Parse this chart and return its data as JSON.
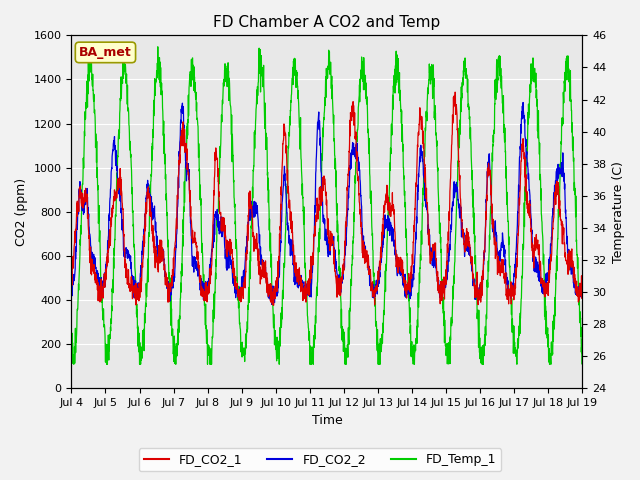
{
  "title": "FD Chamber A CO2 and Temp",
  "xlabel": "Time",
  "ylabel_left": "CO2 (ppm)",
  "ylabel_right": "Temperature (C)",
  "ylim_left": [
    0,
    1600
  ],
  "ylim_right": [
    24,
    46
  ],
  "yticks_left": [
    0,
    200,
    400,
    600,
    800,
    1000,
    1200,
    1400,
    1600
  ],
  "yticks_right": [
    24,
    26,
    28,
    30,
    32,
    34,
    36,
    38,
    40,
    42,
    44,
    46
  ],
  "xtick_labels": [
    "Jul 4",
    "Jul 5",
    "Jul 6",
    "Jul 7",
    "Jul 8",
    "Jul 9",
    "Jul 10",
    "Jul 11",
    "Jul 12",
    "Jul 13",
    "Jul 14",
    "Jul 15",
    "Jul 16",
    "Jul 17",
    "Jul 18",
    "Jul 19"
  ],
  "color_co2_1": "#dd0000",
  "color_co2_2": "#0000dd",
  "color_temp": "#00cc00",
  "legend_labels": [
    "FD_CO2_1",
    "FD_CO2_2",
    "FD_Temp_1"
  ],
  "annotation_text": "BA_met",
  "annotation_color": "#aa0000",
  "annotation_bg": "#ffffcc",
  "annotation_edge": "#999900",
  "plot_bg_color": "#e8e8e8",
  "fig_bg_color": "#f2f2f2",
  "title_fontsize": 11,
  "axis_fontsize": 9,
  "tick_fontsize": 8,
  "legend_fontsize": 9,
  "linewidth_co2": 0.9,
  "linewidth_temp": 0.9
}
